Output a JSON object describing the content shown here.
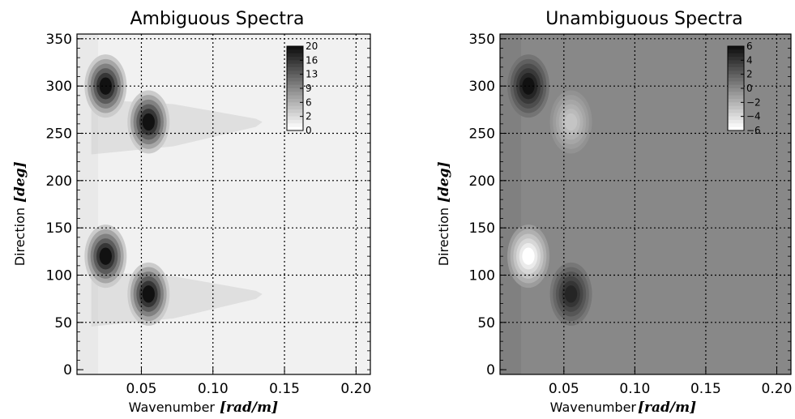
{
  "chart_data": [
    {
      "type": "heatmap",
      "title": "Ambiguous Spectra",
      "xlabel": "Wavenumber",
      "xunit": "[rad/m]",
      "ylabel": "Direction",
      "yunit": "[deg]",
      "xlim": [
        0.005,
        0.21
      ],
      "ylim": [
        -5,
        355
      ],
      "xticks": [
        0.05,
        0.1,
        0.15,
        0.2
      ],
      "xtick_labels": [
        "0.05",
        "0.10",
        "0.15",
        "0.20"
      ],
      "yticks": [
        0,
        50,
        100,
        150,
        200,
        250,
        300,
        350
      ],
      "ytick_labels": [
        "0",
        "50",
        "100",
        "150",
        "200",
        "250",
        "300",
        "350"
      ],
      "grid": true,
      "colorbar": {
        "labels": [
          "20",
          "16",
          "13",
          "9",
          "6",
          "2",
          "0"
        ],
        "min": 0,
        "max": 20,
        "from_color": "#ffffff",
        "to_color": "#111111",
        "placement": "top-right"
      },
      "background_value": 1.2,
      "peaks": [
        {
          "x": 0.025,
          "y": 300,
          "value": 20
        },
        {
          "x": 0.055,
          "y": 262,
          "value": 20
        },
        {
          "x": 0.025,
          "y": 120,
          "value": 20
        },
        {
          "x": 0.055,
          "y": 80,
          "value": 20
        }
      ],
      "plumes": [
        {
          "x_from": 0.015,
          "x_to": 0.13,
          "y": 262,
          "value": 4
        },
        {
          "x_from": 0.015,
          "x_to": 0.13,
          "y": 80,
          "value": 4
        }
      ]
    },
    {
      "type": "heatmap",
      "title": "Unambiguous Spectra",
      "xlabel": "Wavenumber",
      "xunit": "[rad/m]",
      "ylabel": "Direction",
      "yunit": "[deg]",
      "xlim": [
        0.005,
        0.21
      ],
      "ylim": [
        -5,
        355
      ],
      "xticks": [
        0.05,
        0.1,
        0.15,
        0.2
      ],
      "xtick_labels": [
        "0.05",
        "0.10",
        "0.15",
        "0.20"
      ],
      "yticks": [
        0,
        50,
        100,
        150,
        200,
        250,
        300,
        350
      ],
      "ytick_labels": [
        "0",
        "50",
        "100",
        "150",
        "200",
        "250",
        "300",
        "350"
      ],
      "grid": true,
      "colorbar": {
        "labels": [
          "6",
          "4",
          "2",
          "0",
          "−2",
          "−4",
          "−6"
        ],
        "min": -6,
        "max": 6,
        "from_color": "#ffffff",
        "to_color": "#111111",
        "placement": "top-right"
      },
      "background_value": 0,
      "peaks": [
        {
          "x": 0.025,
          "y": 300,
          "value": 6
        },
        {
          "x": 0.055,
          "y": 262,
          "value": -3
        },
        {
          "x": 0.025,
          "y": 120,
          "value": -6
        },
        {
          "x": 0.055,
          "y": 80,
          "value": 5
        }
      ],
      "plumes": []
    }
  ]
}
